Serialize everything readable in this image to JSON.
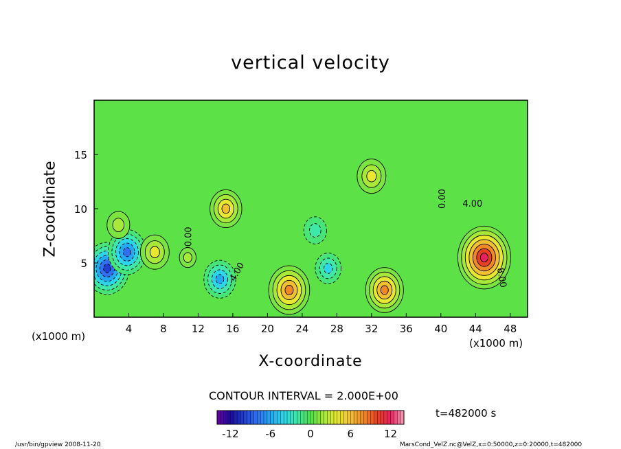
{
  "chart_data": {
    "type": "heatmap",
    "title": "vertical velocity",
    "xlabel": "X-coordinate",
    "ylabel": "Z-coordinate",
    "x_unit": "(x1000 m)",
    "x_ticks": [
      "4",
      "8",
      "12",
      "16",
      "20",
      "24",
      "28",
      "32",
      "36",
      "40",
      "44",
      "48"
    ],
    "y_ticks": [
      "5",
      "10",
      "15"
    ],
    "xlim": [
      0,
      50
    ],
    "ylim": [
      0,
      20
    ],
    "contour_interval_text": "CONTOUR INTERVAL = 2.000E+00",
    "contour_labels": [
      "0.00",
      "-4.00",
      "0.00",
      "4.00",
      "8.00"
    ],
    "colorbar": {
      "ticks": [
        "-12",
        "-6",
        "0",
        "6",
        "12"
      ],
      "range": [
        -14,
        14
      ]
    },
    "time_text": "t=482000 s",
    "features": [
      {
        "x": 1.5,
        "z": 4.5,
        "value": -10
      },
      {
        "x": 3.8,
        "z": 6.0,
        "value": -8
      },
      {
        "x": 2.8,
        "z": 8.5,
        "value": 3
      },
      {
        "x": 7.0,
        "z": 6.0,
        "value": 5
      },
      {
        "x": 10.8,
        "z": 5.5,
        "value": 1
      },
      {
        "x": 14.5,
        "z": 3.5,
        "value": -6
      },
      {
        "x": 15.2,
        "z": 10.0,
        "value": 6
      },
      {
        "x": 22.5,
        "z": 2.5,
        "value": 9
      },
      {
        "x": 27.0,
        "z": 4.5,
        "value": -4
      },
      {
        "x": 25.5,
        "z": 8.0,
        "value": -3
      },
      {
        "x": 32.0,
        "z": 13.0,
        "value": 5
      },
      {
        "x": 33.5,
        "z": 2.5,
        "value": 8
      },
      {
        "x": 45.0,
        "z": 5.5,
        "value": 13
      }
    ]
  },
  "footer": {
    "left": "/usr/bin/gpview   2008-11-20",
    "right": "MarsCond_VelZ.nc@VelZ,x=0:50000,z=0:20000,t=482000"
  }
}
